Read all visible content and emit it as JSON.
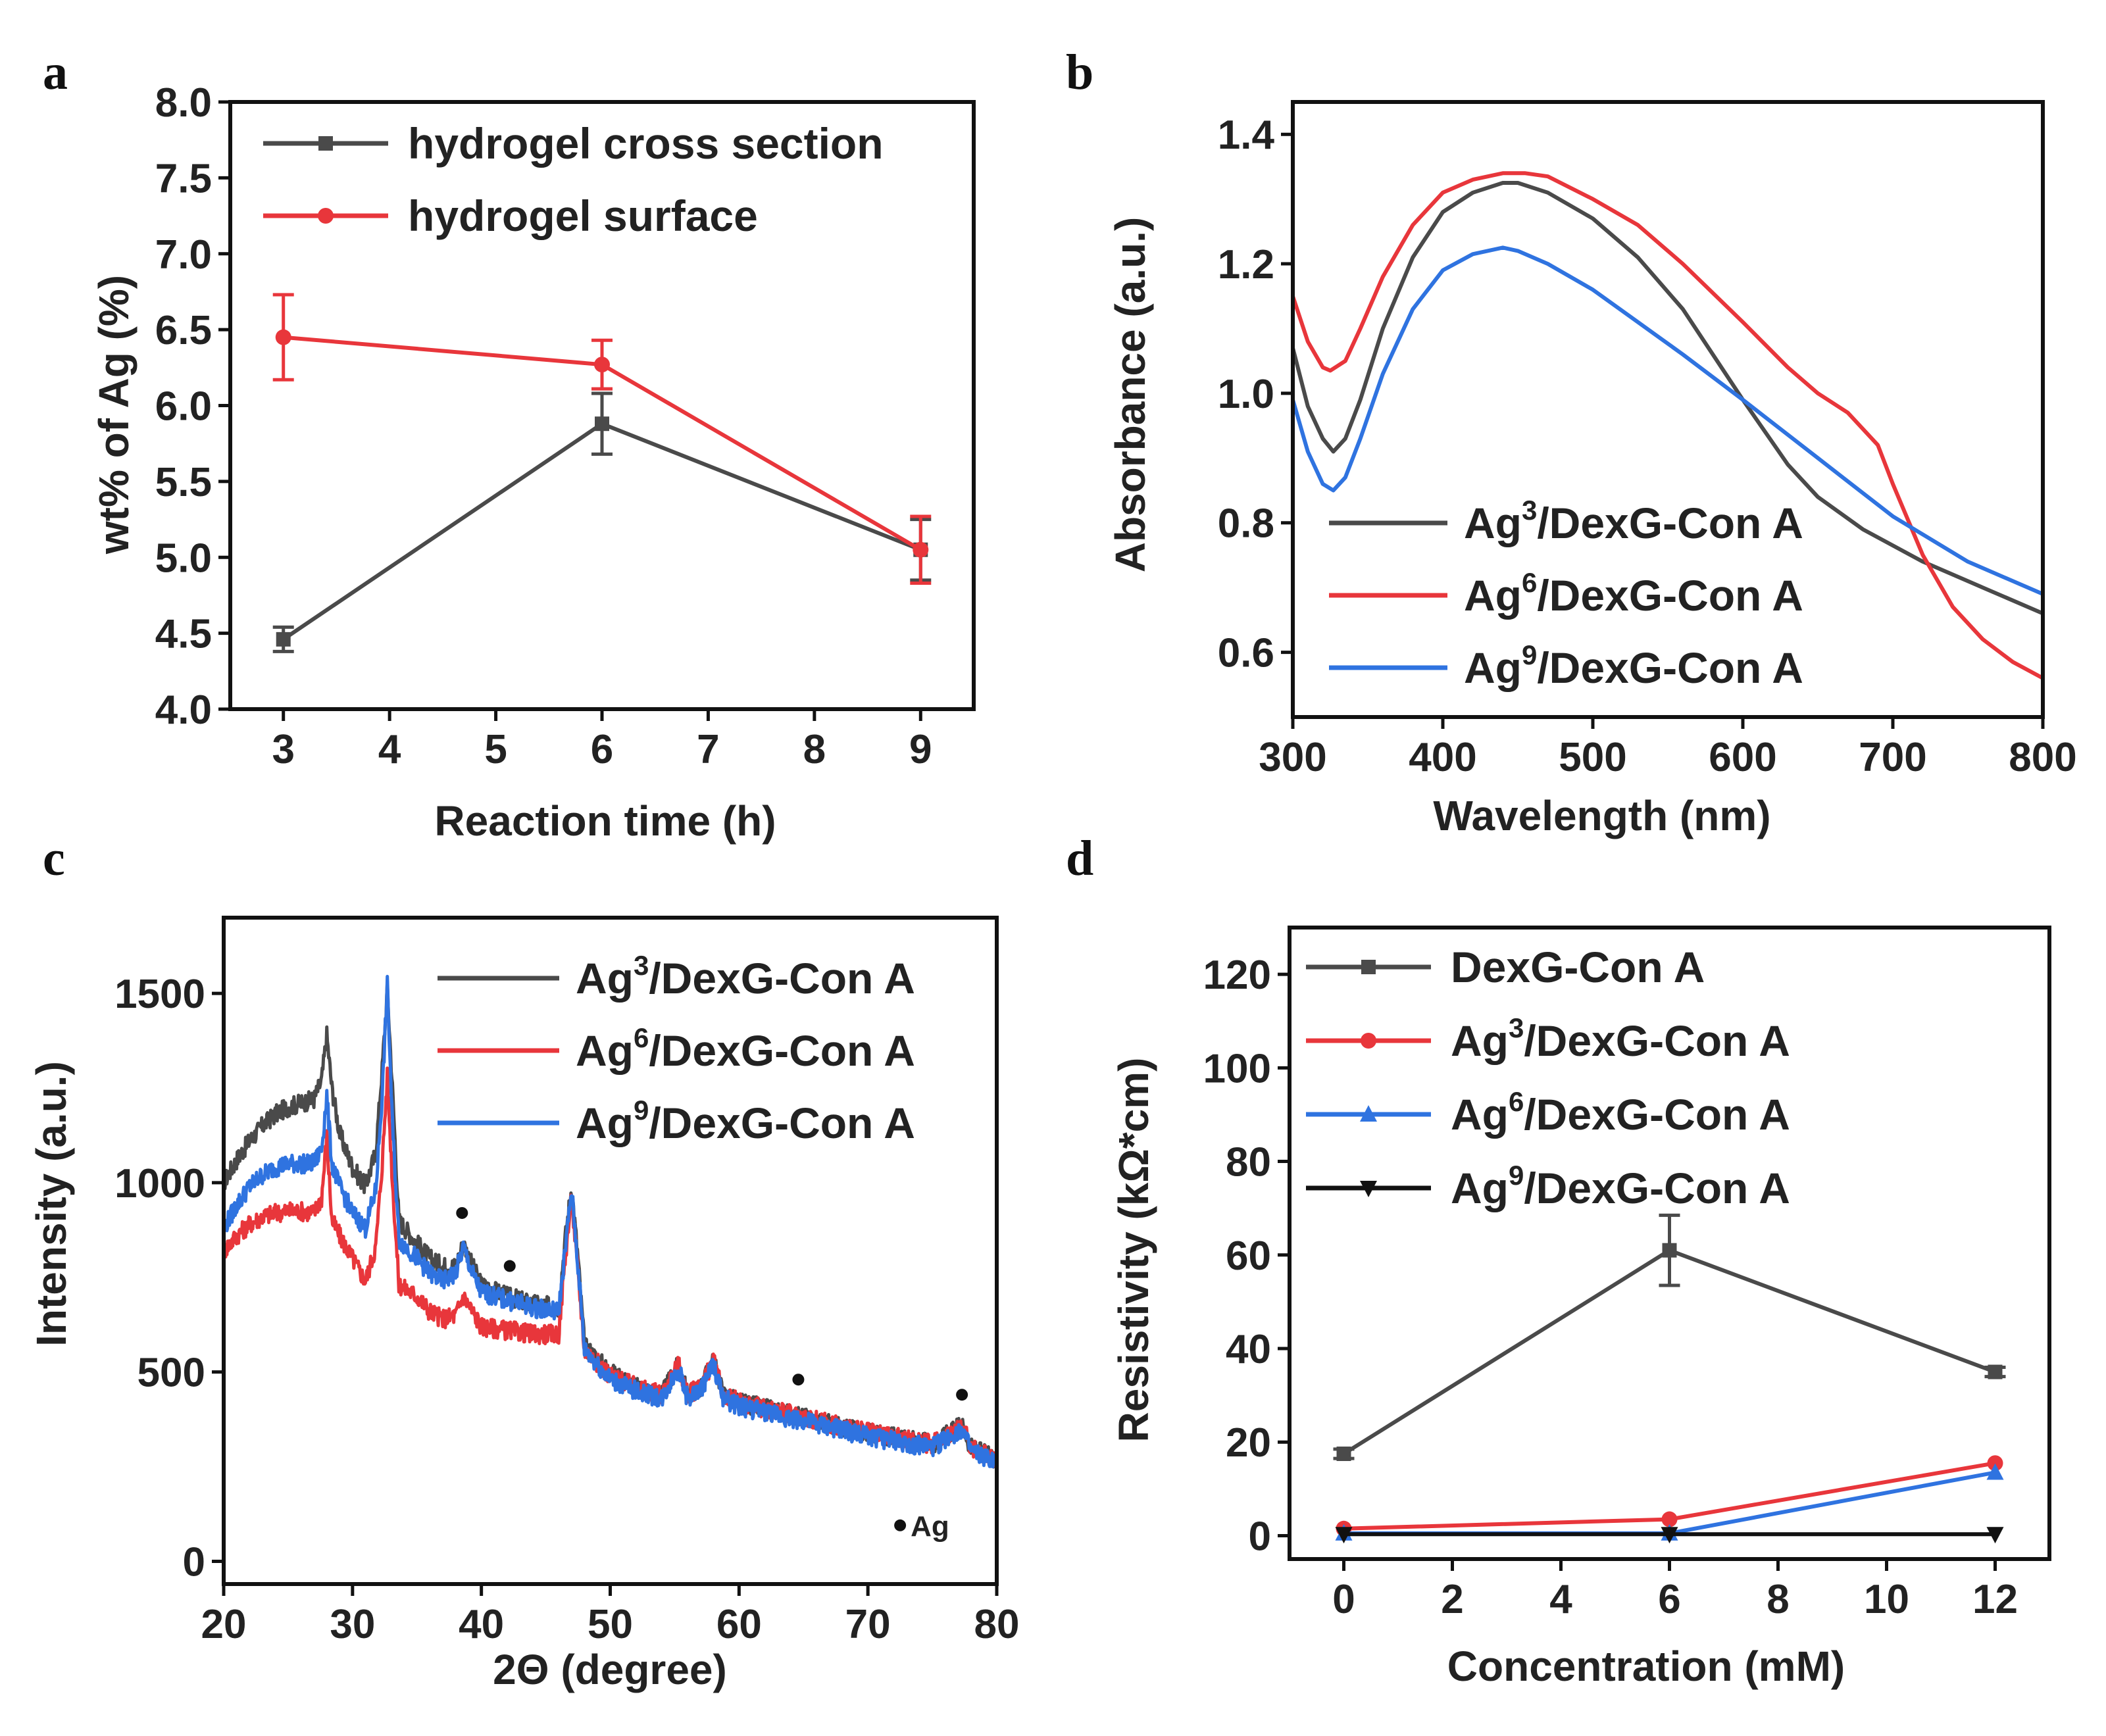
{
  "chart_data": [
    {
      "panel": "a",
      "type": "line",
      "xlabel": "Reaction time (h)",
      "ylabel": "wt% of Ag (%)",
      "xlim": [
        2.5,
        9.5
      ],
      "ylim": [
        4.0,
        8.0
      ],
      "xticks": [
        3,
        4,
        5,
        6,
        7,
        8,
        9
      ],
      "yticks": [
        4.0,
        4.5,
        5.0,
        5.5,
        6.0,
        6.5,
        7.0,
        7.5,
        8.0
      ],
      "tick_decimals": [
        0,
        1
      ],
      "legend_position": "top-left",
      "series": [
        {
          "name": "hydrogel cross section",
          "color": "#4a4a4a",
          "marker": "square",
          "x": [
            3,
            6,
            9
          ],
          "y": [
            4.46,
            5.88,
            5.05
          ],
          "err": [
            0.08,
            0.2,
            0.2
          ]
        },
        {
          "name": "hydrogel surface",
          "color": "#e8363b",
          "marker": "circle",
          "x": [
            3,
            6,
            9
          ],
          "y": [
            6.45,
            6.27,
            5.05
          ],
          "err": [
            0.28,
            0.16,
            0.22
          ]
        }
      ]
    },
    {
      "panel": "b",
      "type": "line",
      "xlabel": "Wavelength (nm)",
      "ylabel": "Absorbance (a.u.)",
      "xlim": [
        300,
        800
      ],
      "ylim": [
        0.5,
        1.45
      ],
      "xticks": [
        300,
        400,
        500,
        600,
        700,
        800
      ],
      "yticks": [
        0.6,
        0.8,
        1.0,
        1.2,
        1.4
      ],
      "tick_decimals": [
        0,
        1
      ],
      "legend_position": "bottom-left",
      "series": [
        {
          "name": "Ag",
          "sup": "3",
          "suffix": "/DexG-Con A",
          "color": "#4a4a4a",
          "x": [
            300,
            310,
            320,
            327,
            335,
            345,
            360,
            380,
            400,
            420,
            440,
            450,
            470,
            500,
            530,
            560,
            600,
            630,
            650,
            680,
            720,
            760,
            800
          ],
          "y": [
            1.07,
            0.98,
            0.93,
            0.91,
            0.93,
            0.99,
            1.1,
            1.21,
            1.28,
            1.31,
            1.325,
            1.325,
            1.31,
            1.27,
            1.21,
            1.13,
            0.99,
            0.89,
            0.84,
            0.79,
            0.74,
            0.7,
            0.66
          ]
        },
        {
          "name": "Ag",
          "sup": "6",
          "suffix": "/DexG-Con A",
          "color": "#e8363b",
          "x": [
            300,
            310,
            320,
            325,
            335,
            345,
            360,
            380,
            400,
            420,
            440,
            455,
            470,
            500,
            530,
            560,
            600,
            630,
            650,
            670,
            690,
            700,
            720,
            740,
            760,
            780,
            800
          ],
          "y": [
            1.15,
            1.08,
            1.04,
            1.035,
            1.05,
            1.1,
            1.18,
            1.26,
            1.31,
            1.33,
            1.34,
            1.34,
            1.335,
            1.3,
            1.26,
            1.2,
            1.11,
            1.04,
            1.0,
            0.97,
            0.92,
            0.86,
            0.75,
            0.67,
            0.62,
            0.585,
            0.56
          ]
        },
        {
          "name": "Ag",
          "sup": "9",
          "suffix": "/DexG-Con A",
          "color": "#2f73e0",
          "x": [
            300,
            310,
            320,
            327,
            335,
            345,
            360,
            380,
            400,
            420,
            440,
            450,
            470,
            500,
            530,
            560,
            600,
            650,
            700,
            750,
            800
          ],
          "y": [
            0.99,
            0.91,
            0.86,
            0.85,
            0.87,
            0.93,
            1.03,
            1.13,
            1.19,
            1.215,
            1.225,
            1.22,
            1.2,
            1.16,
            1.11,
            1.06,
            0.99,
            0.9,
            0.81,
            0.74,
            0.69
          ]
        }
      ]
    },
    {
      "panel": "c",
      "type": "line",
      "xlabel": "2Θ (degree)",
      "ylabel": "Intensity (a.u.)",
      "xlim": [
        20,
        80
      ],
      "ylim": [
        -60,
        1700
      ],
      "xticks": [
        20,
        30,
        40,
        50,
        60,
        70,
        80
      ],
      "yticks": [
        0,
        500,
        1000,
        1500
      ],
      "tick_decimals": [
        0,
        0
      ],
      "legend_position": "top-right",
      "annotation": "Ag",
      "ag_peaks": [
        [
          38.5,
          920
        ],
        [
          42.2,
          780
        ],
        [
          64.6,
          480
        ],
        [
          77.3,
          440
        ]
      ],
      "series": [
        {
          "name": "Ag",
          "sup": "3",
          "suffix": "/DexG-Con A",
          "color": "#4a4a4a",
          "noise": 25,
          "x": [
            20,
            21,
            22,
            23,
            24,
            25,
            26,
            27,
            27.6,
            28,
            28.4,
            29,
            30,
            31,
            31.8,
            32.3,
            32.7,
            33.1,
            33.6,
            35,
            36,
            37,
            38,
            38.6,
            39.3,
            40,
            42,
            44,
            46,
            46.5,
            47,
            47.5,
            48,
            50,
            52,
            54,
            55.3,
            56,
            57,
            58,
            58.8,
            60,
            65,
            70,
            75,
            77.3,
            78,
            80
          ],
          "y": [
            1000,
            1060,
            1110,
            1150,
            1180,
            1200,
            1210,
            1220,
            1270,
            1390,
            1250,
            1130,
            1040,
            990,
            1080,
            1300,
            1510,
            1250,
            900,
            840,
            800,
            780,
            780,
            840,
            780,
            730,
            700,
            680,
            670,
            850,
            990,
            800,
            570,
            500,
            460,
            440,
            520,
            440,
            460,
            530,
            440,
            420,
            380,
            340,
            310,
            360,
            300,
            270
          ]
        },
        {
          "name": "Ag",
          "sup": "6",
          "suffix": "/DexG-Con A",
          "color": "#e8363b",
          "noise": 25,
          "x": [
            20,
            21,
            22,
            23,
            24,
            25,
            26,
            27,
            27.6,
            28,
            28.4,
            29,
            30,
            31,
            31.8,
            32.3,
            32.7,
            33.1,
            33.6,
            35,
            36,
            37,
            38,
            38.6,
            39.3,
            40,
            42,
            44,
            46,
            46.5,
            47,
            47.5,
            48,
            50,
            52,
            54,
            55.3,
            56,
            57,
            58,
            58.8,
            60,
            65,
            70,
            75,
            77.3,
            78,
            80
          ],
          "y": [
            820,
            860,
            890,
            910,
            920,
            925,
            925,
            920,
            960,
            1120,
            900,
            860,
            800,
            740,
            830,
            1050,
            1280,
            1000,
            730,
            700,
            660,
            640,
            650,
            700,
            660,
            620,
            610,
            600,
            600,
            800,
            960,
            760,
            560,
            490,
            460,
            440,
            520,
            440,
            460,
            530,
            440,
            420,
            380,
            340,
            310,
            360,
            300,
            270
          ]
        },
        {
          "name": "Ag",
          "sup": "9",
          "suffix": "/DexG-Con A",
          "color": "#2f73e0",
          "noise": 25,
          "x": [
            20,
            21,
            22,
            23,
            24,
            25,
            26,
            27,
            27.6,
            28,
            28.4,
            29,
            30,
            31,
            31.8,
            32.3,
            32.7,
            33.1,
            33.6,
            35,
            36,
            37,
            38,
            38.6,
            39.3,
            40,
            42,
            44,
            46,
            46.5,
            47,
            47.5,
            48,
            50,
            52,
            54,
            55.3,
            56,
            57,
            58,
            58.8,
            60,
            65,
            70,
            75,
            77.3,
            78,
            80
          ],
          "y": [
            880,
            940,
            990,
            1020,
            1040,
            1050,
            1050,
            1050,
            1090,
            1230,
            1050,
            990,
            920,
            880,
            980,
            1230,
            1520,
            1150,
            850,
            800,
            760,
            740,
            760,
            830,
            760,
            710,
            690,
            670,
            660,
            820,
            980,
            780,
            560,
            480,
            450,
            430,
            510,
            430,
            450,
            520,
            430,
            410,
            370,
            330,
            300,
            350,
            290,
            260
          ]
        }
      ]
    },
    {
      "panel": "d",
      "type": "line",
      "xlabel": "Concentration (mM)",
      "ylabel": "Resistivity (kΩ*cm)",
      "xlim": [
        -1,
        13
      ],
      "ylim": [
        -5,
        130
      ],
      "xticks": [
        0,
        2,
        4,
        6,
        8,
        10,
        12
      ],
      "yticks": [
        0,
        20,
        40,
        60,
        80,
        100,
        120
      ],
      "tick_decimals": [
        0,
        0
      ],
      "legend_position": "top-left",
      "series": [
        {
          "name": "DexG-Con A",
          "color": "#4a4a4a",
          "marker": "square",
          "x": [
            0,
            6,
            12
          ],
          "y": [
            17.5,
            61,
            35
          ],
          "err": [
            1,
            7.5,
            1
          ]
        },
        {
          "name": "Ag",
          "sup": "3",
          "suffix": "/DexG-Con A",
          "color": "#e8363b",
          "marker": "circle",
          "x": [
            0,
            6,
            12
          ],
          "y": [
            1.5,
            3.5,
            15.5
          ],
          "err": [
            0,
            0,
            0
          ]
        },
        {
          "name": "Ag",
          "sup": "6",
          "suffix": "/DexG-Con A",
          "color": "#2f73e0",
          "marker": "triangle-up",
          "x": [
            0,
            6,
            12
          ],
          "y": [
            0.5,
            0.5,
            13.5
          ],
          "err": [
            0,
            0,
            0
          ]
        },
        {
          "name": "Ag",
          "sup": "9",
          "suffix": "/DexG-Con A",
          "color": "#111111",
          "marker": "triangle-down",
          "x": [
            0,
            6,
            12
          ],
          "y": [
            0.3,
            0.3,
            0.3
          ],
          "err": [
            0,
            0,
            0
          ]
        }
      ]
    }
  ]
}
